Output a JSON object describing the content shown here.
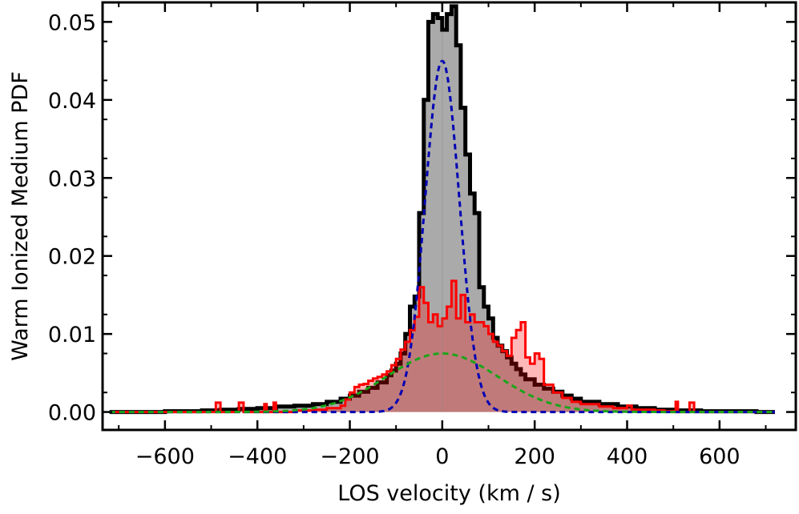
{
  "chart_data": {
    "type": "histogram",
    "xlabel": "LOS velocity   (km / s)",
    "ylabel": "Warm Ionized Medium PDF",
    "xlim": [
      -735,
      765
    ],
    "ylim": [
      -0.0023,
      0.0525
    ],
    "xticks": [
      -600,
      -400,
      -200,
      0,
      200,
      400,
      600
    ],
    "xtick_labels": [
      "−600",
      "−400",
      "−200",
      "0",
      "200",
      "400",
      "600"
    ],
    "yticks": [
      0.0,
      0.01,
      0.02,
      0.03,
      0.04,
      0.05
    ],
    "ytick_labels": [
      "0.00",
      "0.01",
      "0.02",
      "0.03",
      "0.04",
      "0.05"
    ],
    "grid": false,
    "legend": "none",
    "series": [
      {
        "style": "step-filled",
        "color": "#000000",
        "fill": "#aaaaaa",
        "points": [
          [
            -720,
            0.0
          ],
          [
            -660,
            0.0
          ],
          [
            -600,
            0.0001
          ],
          [
            -560,
            0.0001
          ],
          [
            -520,
            0.0002
          ],
          [
            -480,
            0.0003
          ],
          [
            -440,
            0.0004
          ],
          [
            -400,
            0.0005
          ],
          [
            -360,
            0.0007
          ],
          [
            -320,
            0.0008
          ],
          [
            -280,
            0.001
          ],
          [
            -250,
            0.0013
          ],
          [
            -220,
            0.0017
          ],
          [
            -200,
            0.0021
          ],
          [
            -180,
            0.0026
          ],
          [
            -160,
            0.0031
          ],
          [
            -140,
            0.0038
          ],
          [
            -120,
            0.0047
          ],
          [
            -110,
            0.0053
          ],
          [
            -100,
            0.0062
          ],
          [
            -90,
            0.0075
          ],
          [
            -80,
            0.01
          ],
          [
            -70,
            0.0135
          ],
          [
            -60,
            0.0148
          ],
          [
            -50,
            0.0255
          ],
          [
            -40,
            0.04
          ],
          [
            -30,
            0.05
          ],
          [
            -20,
            0.051
          ],
          [
            -10,
            0.0505
          ],
          [
            0,
            0.049
          ],
          [
            10,
            0.051
          ],
          [
            20,
            0.052
          ],
          [
            30,
            0.047
          ],
          [
            40,
            0.039
          ],
          [
            50,
            0.033
          ],
          [
            60,
            0.028
          ],
          [
            70,
            0.0255
          ],
          [
            80,
            0.016
          ],
          [
            90,
            0.0135
          ],
          [
            100,
            0.012
          ],
          [
            110,
            0.0095
          ],
          [
            120,
            0.0085
          ],
          [
            130,
            0.0078
          ],
          [
            140,
            0.007
          ],
          [
            150,
            0.0062
          ],
          [
            160,
            0.0055
          ],
          [
            170,
            0.0048
          ],
          [
            180,
            0.0042
          ],
          [
            200,
            0.0035
          ],
          [
            220,
            0.003
          ],
          [
            240,
            0.0026
          ],
          [
            260,
            0.0021
          ],
          [
            280,
            0.0017
          ],
          [
            300,
            0.0013
          ],
          [
            340,
            0.001
          ],
          [
            380,
            0.0007
          ],
          [
            420,
            0.0005
          ],
          [
            460,
            0.0003
          ],
          [
            500,
            0.0002
          ],
          [
            560,
            0.0001
          ],
          [
            620,
            0.0001
          ],
          [
            680,
            0.0
          ],
          [
            720,
            0.0
          ]
        ]
      },
      {
        "style": "step-filled",
        "color": "#ff0000",
        "fill": "#ff0000",
        "fill_opacity": 0.28,
        "points": [
          [
            -720,
            0.0
          ],
          [
            -600,
            0.0
          ],
          [
            -510,
            0.0
          ],
          [
            -490,
            0.0012
          ],
          [
            -480,
            0.0
          ],
          [
            -445,
            0.0
          ],
          [
            -440,
            0.0012
          ],
          [
            -430,
            0.0
          ],
          [
            -390,
            0.0
          ],
          [
            -385,
            0.001
          ],
          [
            -380,
            0.0
          ],
          [
            -370,
            0.0
          ],
          [
            -365,
            0.0012
          ],
          [
            -360,
            0.0
          ],
          [
            -340,
            0.0
          ],
          [
            -320,
            0.0002
          ],
          [
            -280,
            0.0003
          ],
          [
            -250,
            0.0005
          ],
          [
            -220,
            0.0008
          ],
          [
            -210,
            0.0016
          ],
          [
            -200,
            0.0025
          ],
          [
            -190,
            0.0032
          ],
          [
            -180,
            0.0035
          ],
          [
            -170,
            0.0036
          ],
          [
            -160,
            0.004
          ],
          [
            -150,
            0.0043
          ],
          [
            -140,
            0.0045
          ],
          [
            -130,
            0.0048
          ],
          [
            -120,
            0.0052
          ],
          [
            -110,
            0.006
          ],
          [
            -100,
            0.0068
          ],
          [
            -90,
            0.008
          ],
          [
            -80,
            0.009
          ],
          [
            -70,
            0.0105
          ],
          [
            -60,
            0.0122
          ],
          [
            -50,
            0.016
          ],
          [
            -40,
            0.014
          ],
          [
            -30,
            0.0115
          ],
          [
            -20,
            0.0125
          ],
          [
            -10,
            0.011
          ],
          [
            0,
            0.012
          ],
          [
            10,
            0.0135
          ],
          [
            20,
            0.0168
          ],
          [
            30,
            0.012
          ],
          [
            40,
            0.015
          ],
          [
            50,
            0.0115
          ],
          [
            60,
            0.0125
          ],
          [
            70,
            0.0115
          ],
          [
            80,
            0.0115
          ],
          [
            90,
            0.011
          ],
          [
            100,
            0.01
          ],
          [
            110,
            0.009
          ],
          [
            120,
            0.0085
          ],
          [
            130,
            0.0078
          ],
          [
            140,
            0.0072
          ],
          [
            150,
            0.0095
          ],
          [
            160,
            0.0105
          ],
          [
            170,
            0.0115
          ],
          [
            180,
            0.007
          ],
          [
            190,
            0.0062
          ],
          [
            200,
            0.0075
          ],
          [
            210,
            0.0068
          ],
          [
            220,
            0.0035
          ],
          [
            240,
            0.0025
          ],
          [
            260,
            0.0018
          ],
          [
            280,
            0.0013
          ],
          [
            300,
            0.001
          ],
          [
            340,
            0.0007
          ],
          [
            370,
            0.0005
          ],
          [
            400,
            0.0008
          ],
          [
            410,
            0.0003
          ],
          [
            440,
            0.0003
          ],
          [
            460,
            0.0002
          ],
          [
            480,
            0.0001
          ],
          [
            500,
            0.0
          ],
          [
            505,
            0.0013
          ],
          [
            510,
            0.0
          ],
          [
            530,
            0.0
          ],
          [
            535,
            0.0012
          ],
          [
            545,
            0.0
          ],
          [
            600,
            0.0
          ],
          [
            720,
            0.0
          ]
        ]
      },
      {
        "style": "dashed-line",
        "color": "#0000b4",
        "model": "gaussian",
        "amplitude": 0.045,
        "center": 0,
        "sigma": 37,
        "x_range": [
          -720,
          720
        ]
      },
      {
        "style": "dashed-line",
        "color": "#1aa51a",
        "model": "gaussian",
        "amplitude": 0.0075,
        "center": 0,
        "sigma": 120,
        "x_range": [
          -720,
          720
        ]
      }
    ]
  }
}
